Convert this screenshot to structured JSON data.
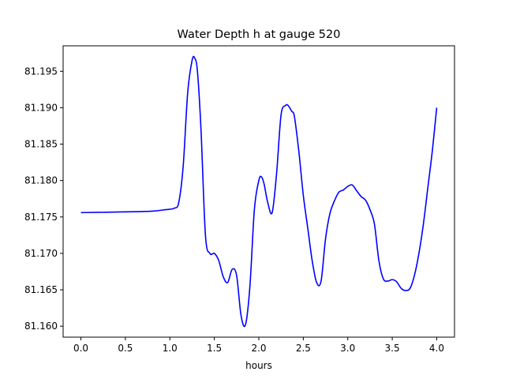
{
  "chart_data": {
    "type": "line",
    "title": "Water Depth h at gauge 520",
    "xlabel": "hours",
    "ylabel": "",
    "xlim": [
      -0.2,
      4.2
    ],
    "ylim": [
      81.1585,
      81.1985
    ],
    "xticks": [
      0.0,
      0.5,
      1.0,
      1.5,
      2.0,
      2.5,
      3.0,
      3.5,
      4.0
    ],
    "xtick_labels": [
      "0.0",
      "0.5",
      "1.0",
      "1.5",
      "2.0",
      "2.5",
      "3.0",
      "3.5",
      "4.0"
    ],
    "yticks": [
      81.16,
      81.165,
      81.17,
      81.175,
      81.18,
      81.185,
      81.19,
      81.195
    ],
    "ytick_labels": [
      "81.160",
      "81.165",
      "81.170",
      "81.175",
      "81.180",
      "81.185",
      "81.190",
      "81.195"
    ],
    "grid": false,
    "line_color": "#0000ff",
    "series": [
      {
        "x": [
          0.0,
          0.5,
          0.8,
          0.95,
          1.05,
          1.1,
          1.15,
          1.2,
          1.25,
          1.28,
          1.31,
          1.35,
          1.4,
          1.45,
          1.5,
          1.55,
          1.6,
          1.65,
          1.7,
          1.75,
          1.8,
          1.85,
          1.9,
          1.95,
          2.0,
          2.03,
          2.06,
          2.1,
          2.15,
          2.2,
          2.25,
          2.3,
          2.33,
          2.37,
          2.4,
          2.45,
          2.5,
          2.55,
          2.6,
          2.65,
          2.7,
          2.75,
          2.8,
          2.85,
          2.9,
          2.95,
          3.0,
          3.05,
          3.1,
          3.15,
          3.2,
          3.25,
          3.3,
          3.35,
          3.4,
          3.45,
          3.5,
          3.55,
          3.6,
          3.65,
          3.7,
          3.75,
          3.8,
          3.85,
          3.9,
          3.95,
          4.0
        ],
        "y": [
          81.1756,
          81.1757,
          81.1758,
          81.176,
          81.1762,
          81.177,
          81.182,
          81.192,
          81.1965,
          81.1968,
          81.195,
          81.187,
          81.1725,
          81.17,
          81.17,
          81.169,
          81.1668,
          81.166,
          81.1678,
          81.167,
          81.1615,
          81.1602,
          81.1655,
          81.176,
          81.18,
          81.1805,
          81.1795,
          81.177,
          81.1756,
          81.181,
          81.189,
          81.1903,
          81.1903,
          81.1895,
          81.1888,
          81.184,
          81.178,
          81.1735,
          81.169,
          81.166,
          81.1662,
          81.172,
          81.1755,
          81.1772,
          81.1784,
          81.1787,
          81.1792,
          81.1794,
          81.1786,
          81.1778,
          81.1773,
          81.176,
          81.174,
          81.169,
          81.1665,
          81.1662,
          81.1664,
          81.1661,
          81.1652,
          81.1649,
          81.1652,
          81.167,
          81.17,
          81.174,
          81.179,
          81.184,
          81.19
        ]
      }
    ]
  }
}
